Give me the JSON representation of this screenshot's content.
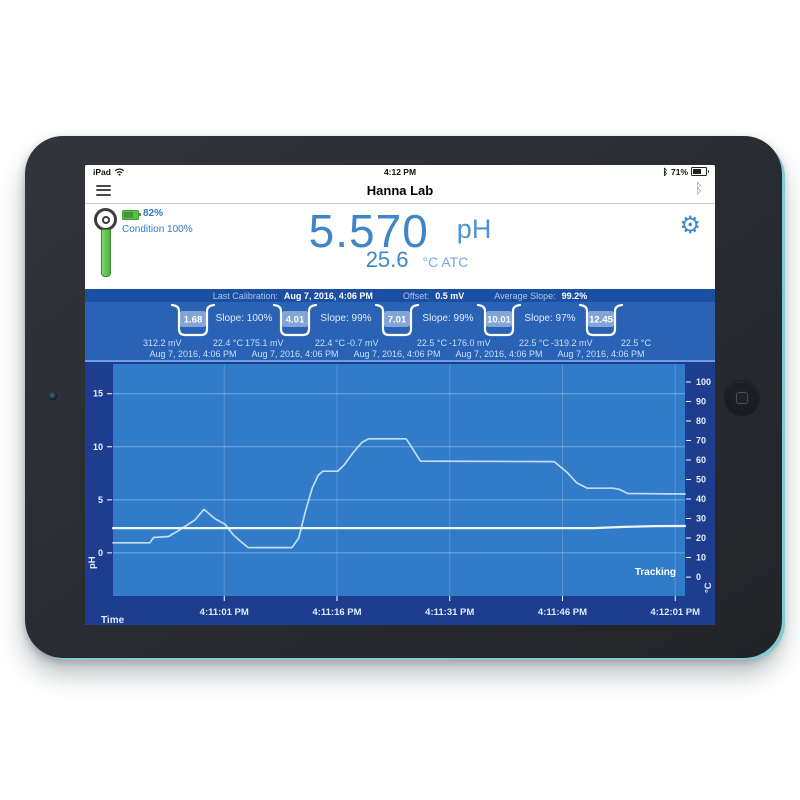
{
  "status_bar": {
    "device": "iPad",
    "time": "4:12 PM",
    "battery": "71%"
  },
  "nav": {
    "title": "Hanna Lab"
  },
  "icons": {
    "bluetooth": "ᛒ",
    "gear": "⚙",
    "probe": "electrode-icon"
  },
  "probe": {
    "battery_pct": "82%",
    "condition": "Condition 100%"
  },
  "reading": {
    "value": "5.570",
    "unit": "pH",
    "temp": "25.6",
    "temp_unit": "°C ATC"
  },
  "calibration": {
    "label": "Last Calibration:",
    "date": "Aug 7, 2016, 4:06 PM",
    "offset_label": "Offset:",
    "offset": "0.5 mV",
    "avg_slope_label": "Average Slope:",
    "avg_slope": "99.2%"
  },
  "buffers": [
    {
      "value": "1.68",
      "mv": "312.2 mV",
      "temp": "22.4 °C",
      "date": "Aug 7, 2016, 4:06 PM"
    },
    {
      "value": "4.01",
      "mv": "175.1 mV",
      "temp": "22.4 °C",
      "date": "Aug 7, 2016, 4:06 PM"
    },
    {
      "value": "7.01",
      "mv": "-0.7 mV",
      "temp": "22.5 °C",
      "date": "Aug 7, 2016, 4:06 PM"
    },
    {
      "value": "10.01",
      "mv": "-176.0 mV",
      "temp": "22.5 °C",
      "date": "Aug 7, 2016, 4:06 PM"
    },
    {
      "value": "12.45",
      "mv": "-319.2 mV",
      "temp": "22.5 °C",
      "date": "Aug 7, 2016, 4:06 PM"
    }
  ],
  "slopes": [
    "Slope: 100%",
    "Slope: 99%",
    "Slope: 99%",
    "Slope: 97%"
  ],
  "chart_data": {
    "type": "line",
    "xlabel": "Time",
    "ylabel_left": "pH",
    "ylabel_right": "°C",
    "annotation": "Tracking",
    "x_tick_labels": [
      "4:11:01 PM",
      "4:11:16 PM",
      "4:11:31 PM",
      "4:11:46 PM",
      "4:12:01 PM"
    ],
    "x_tick_seconds": [
      14.8,
      29.8,
      44.8,
      59.8,
      74.8
    ],
    "x_window_seconds": [
      0,
      76.1
    ],
    "left_axis": {
      "ticks": [
        0,
        5,
        10,
        15
      ],
      "range": [
        -4.06,
        17.8
      ]
    },
    "right_axis": {
      "ticks": [
        0,
        10,
        20,
        30,
        40,
        50,
        60,
        70,
        80,
        90,
        100
      ],
      "range": [
        -9.7,
        109.2
      ]
    },
    "grid": true,
    "series": [
      {
        "name": "pH",
        "axis": "left",
        "points": [
          [
            0,
            0.95
          ],
          [
            4.9,
            0.95
          ],
          [
            5.4,
            1.45
          ],
          [
            7.4,
            1.55
          ],
          [
            8.7,
            2.1
          ],
          [
            10.9,
            3.1
          ],
          [
            12.1,
            4.1
          ],
          [
            13.6,
            3.2
          ],
          [
            14.9,
            2.7
          ],
          [
            16,
            1.7
          ],
          [
            17.2,
            0.95
          ],
          [
            18,
            0.5
          ],
          [
            23.8,
            0.5
          ],
          [
            24.7,
            1.4
          ],
          [
            25.6,
            3.9
          ],
          [
            26.5,
            6.1
          ],
          [
            27.3,
            7.3
          ],
          [
            27.9,
            7.7
          ],
          [
            29.9,
            7.7
          ],
          [
            30.7,
            8.25
          ],
          [
            31.9,
            9.4
          ],
          [
            33.1,
            10.4
          ],
          [
            34,
            10.75
          ],
          [
            39,
            10.75
          ],
          [
            39.6,
            10.1
          ],
          [
            40.9,
            8.65
          ],
          [
            58.7,
            8.6
          ],
          [
            60.4,
            7.6
          ],
          [
            61.7,
            6.6
          ],
          [
            63.1,
            6.1
          ],
          [
            66.5,
            6.1
          ],
          [
            67.3,
            6.0
          ],
          [
            68.5,
            5.6
          ],
          [
            76.1,
            5.55
          ]
        ]
      },
      {
        "name": "Temperature",
        "axis": "right",
        "points": [
          [
            0,
            25.1
          ],
          [
            64,
            25.1
          ],
          [
            68,
            25.7
          ],
          [
            72,
            26.1
          ],
          [
            76.1,
            26.2
          ]
        ]
      }
    ]
  },
  "colors": {
    "accent_blue": "#2e7ac0",
    "reading_blue": "#3f86c8",
    "calib_bg": "#1b4fa2",
    "buffer_bg": "#2a63b5",
    "chart_bg": "#1e3d8e",
    "plot_bg": "#327bc9",
    "ph_trace": "#bfdef5",
    "temp_trace": "#eef6fc",
    "probe_green": "#56bb47",
    "device_edge_teal": "#85c9d3"
  }
}
